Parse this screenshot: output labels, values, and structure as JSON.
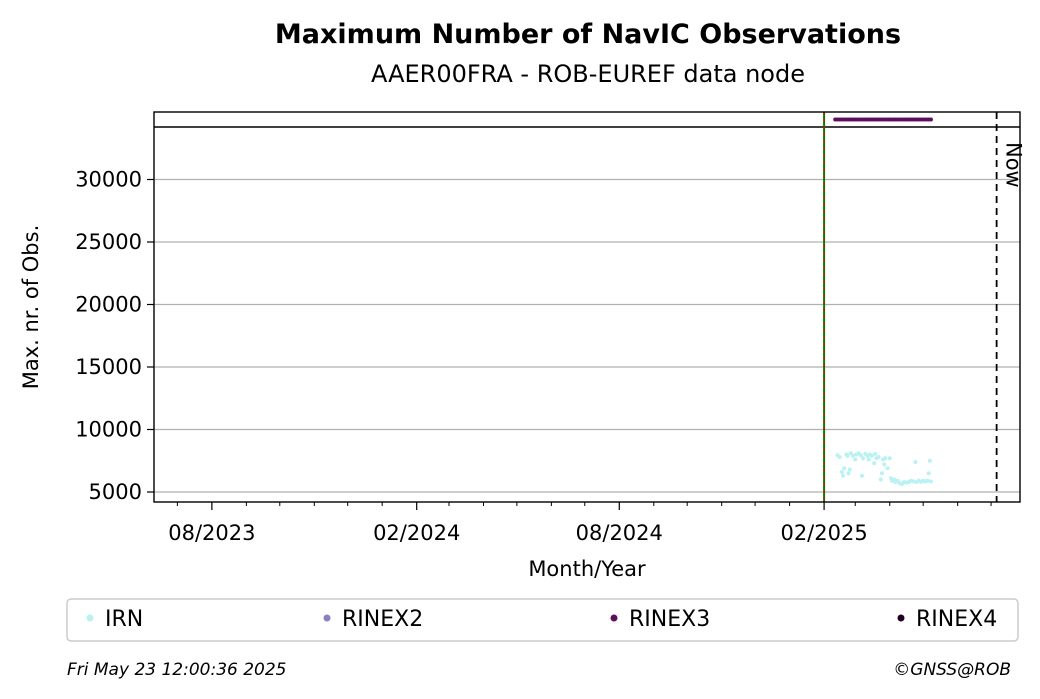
{
  "chart_data": {
    "type": "scatter",
    "title": "Maximum Number of NavIC Observations",
    "subtitle": "AAER00FRA - ROB-EUREF data node",
    "xlabel": "Month/Year",
    "ylabel": "Max. nr. of Obs.",
    "x_tick_labels": [
      "08/2023",
      "02/2024",
      "08/2024",
      "02/2025"
    ],
    "y_ticks": [
      5000,
      10000,
      15000,
      20000,
      25000,
      30000
    ],
    "ylim": [
      4200,
      35400
    ],
    "xlim": [
      "2023-06-10",
      "2025-07-27"
    ],
    "grid": "horizontal",
    "hline_y": 34200,
    "start_marker_date": "2025-02-01",
    "now_date": "2025-07-06",
    "now_label": "Now",
    "legend_position": "bottom",
    "series": [
      {
        "name": "IRN",
        "color": "#b8f2f2",
        "marker": "small-dot",
        "points": [
          [
            "2025-02-13",
            7950
          ],
          [
            "2025-02-15",
            7800
          ],
          [
            "2025-02-17",
            6600
          ],
          [
            "2025-02-18",
            6300
          ],
          [
            "2025-02-19",
            6900
          ],
          [
            "2025-02-21",
            8000
          ],
          [
            "2025-02-22",
            7900
          ],
          [
            "2025-02-23",
            6500
          ],
          [
            "2025-02-24",
            6800
          ],
          [
            "2025-02-25",
            8100
          ],
          [
            "2025-02-27",
            7900
          ],
          [
            "2025-03-01",
            7600
          ],
          [
            "2025-03-02",
            8000
          ],
          [
            "2025-03-04",
            8100
          ],
          [
            "2025-03-06",
            7950
          ],
          [
            "2025-03-07",
            6300
          ],
          [
            "2025-03-08",
            7700
          ],
          [
            "2025-03-10",
            8050
          ],
          [
            "2025-03-12",
            7900
          ],
          [
            "2025-03-13",
            7600
          ],
          [
            "2025-03-14",
            8000
          ],
          [
            "2025-03-16",
            7900
          ],
          [
            "2025-03-18",
            7300
          ],
          [
            "2025-03-19",
            8050
          ],
          [
            "2025-03-20",
            7700
          ],
          [
            "2025-03-22",
            7800
          ],
          [
            "2025-03-24",
            6000
          ],
          [
            "2025-03-25",
            6500
          ],
          [
            "2025-03-26",
            7600
          ],
          [
            "2025-03-27",
            7200
          ],
          [
            "2025-03-28",
            7700
          ],
          [
            "2025-03-30",
            6900
          ],
          [
            "2025-04-01",
            7700
          ],
          [
            "2025-04-02",
            6100
          ],
          [
            "2025-04-03",
            5900
          ],
          [
            "2025-04-05",
            6000
          ],
          [
            "2025-04-06",
            5800
          ],
          [
            "2025-04-08",
            5900
          ],
          [
            "2025-04-10",
            5700
          ],
          [
            "2025-04-12",
            5650
          ],
          [
            "2025-04-14",
            5800
          ],
          [
            "2025-04-16",
            5750
          ],
          [
            "2025-04-18",
            5800
          ],
          [
            "2025-04-20",
            5900
          ],
          [
            "2025-04-22",
            5850
          ],
          [
            "2025-04-24",
            7400
          ],
          [
            "2025-04-25",
            5800
          ],
          [
            "2025-04-27",
            5900
          ],
          [
            "2025-04-29",
            5800
          ],
          [
            "2025-05-01",
            5900
          ],
          [
            "2025-05-03",
            5850
          ],
          [
            "2025-05-05",
            5900
          ],
          [
            "2025-05-06",
            6500
          ],
          [
            "2025-05-07",
            7500
          ],
          [
            "2025-05-08",
            5850
          ]
        ]
      },
      {
        "name": "RINEX2",
        "color": "#8a7fc0",
        "marker": "small-dot",
        "points": []
      },
      {
        "name": "RINEX3",
        "color": "#5e0e5e",
        "marker": "small-dot",
        "points": [
          [
            "2025-02-11",
            34800
          ],
          [
            "2025-02-13",
            34800
          ],
          [
            "2025-02-15",
            34800
          ],
          [
            "2025-02-17",
            34800
          ],
          [
            "2025-02-19",
            34800
          ],
          [
            "2025-02-21",
            34800
          ],
          [
            "2025-02-23",
            34800
          ],
          [
            "2025-02-25",
            34800
          ],
          [
            "2025-02-27",
            34800
          ],
          [
            "2025-03-01",
            34800
          ],
          [
            "2025-03-03",
            34800
          ],
          [
            "2025-03-05",
            34800
          ],
          [
            "2025-03-07",
            34800
          ],
          [
            "2025-03-09",
            34800
          ],
          [
            "2025-03-11",
            34800
          ],
          [
            "2025-03-13",
            34800
          ],
          [
            "2025-03-15",
            34800
          ],
          [
            "2025-03-17",
            34800
          ],
          [
            "2025-03-19",
            34800
          ],
          [
            "2025-03-21",
            34800
          ],
          [
            "2025-03-23",
            34800
          ],
          [
            "2025-03-25",
            34800
          ],
          [
            "2025-03-27",
            34800
          ],
          [
            "2025-03-29",
            34800
          ],
          [
            "2025-03-31",
            34800
          ],
          [
            "2025-04-02",
            34800
          ],
          [
            "2025-04-04",
            34800
          ],
          [
            "2025-04-06",
            34800
          ],
          [
            "2025-04-08",
            34800
          ],
          [
            "2025-04-10",
            34800
          ],
          [
            "2025-04-12",
            34800
          ],
          [
            "2025-04-14",
            34800
          ],
          [
            "2025-04-16",
            34800
          ],
          [
            "2025-04-18",
            34800
          ],
          [
            "2025-04-20",
            34800
          ],
          [
            "2025-04-22",
            34800
          ],
          [
            "2025-04-24",
            34800
          ],
          [
            "2025-04-26",
            34800
          ],
          [
            "2025-04-28",
            34800
          ],
          [
            "2025-04-30",
            34800
          ],
          [
            "2025-05-02",
            34800
          ],
          [
            "2025-05-04",
            34800
          ],
          [
            "2025-05-06",
            34800
          ],
          [
            "2025-05-08",
            34800
          ]
        ]
      },
      {
        "name": "RINEX4",
        "color": "#1f0022",
        "marker": "small-dot",
        "points": []
      }
    ]
  },
  "footer": {
    "timestamp": "Fri May 23 12:00:36 2025",
    "credit": "©GNSS@ROB"
  }
}
